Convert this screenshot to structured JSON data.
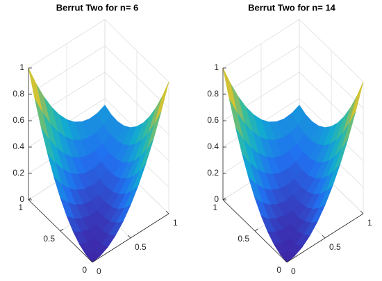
{
  "chart_data": [
    {
      "type": "surface",
      "title": "Berrut Two for n= 6",
      "x": [
        0,
        0.1,
        0.2,
        0.3,
        0.4,
        0.5,
        0.6,
        0.7,
        0.8,
        0.9,
        1
      ],
      "y": [
        0,
        0.1,
        0.2,
        0.3,
        0.4,
        0.5,
        0.6,
        0.7,
        0.8,
        0.9,
        1
      ],
      "z": [
        [
          0,
          0.01,
          0.04,
          0.09,
          0.16,
          0.25,
          0.36,
          0.49,
          0.64,
          0.81,
          1
        ],
        [
          0.01,
          0.004,
          0.017,
          0.051,
          0.104,
          0.178,
          0.271,
          0.385,
          0.518,
          0.672,
          0.845
        ],
        [
          0.04,
          0.017,
          0.014,
          0.031,
          0.068,
          0.125,
          0.202,
          0.299,
          0.416,
          0.553,
          0.71
        ],
        [
          0.09,
          0.051,
          0.031,
          0.032,
          0.052,
          0.093,
          0.153,
          0.234,
          0.334,
          0.455,
          0.595
        ],
        [
          0.16,
          0.104,
          0.068,
          0.052,
          0.056,
          0.08,
          0.124,
          0.188,
          0.272,
          0.376,
          0.5
        ],
        [
          0.25,
          0.178,
          0.125,
          0.093,
          0.08,
          0.088,
          0.115,
          0.163,
          0.23,
          0.318,
          0.425
        ],
        [
          0.36,
          0.271,
          0.202,
          0.153,
          0.124,
          0.115,
          0.126,
          0.157,
          0.208,
          0.279,
          0.37
        ],
        [
          0.49,
          0.385,
          0.299,
          0.234,
          0.188,
          0.163,
          0.157,
          0.172,
          0.206,
          0.261,
          0.335
        ],
        [
          0.64,
          0.518,
          0.416,
          0.334,
          0.272,
          0.23,
          0.208,
          0.206,
          0.224,
          0.262,
          0.32
        ],
        [
          0.81,
          0.672,
          0.553,
          0.455,
          0.376,
          0.318,
          0.279,
          0.261,
          0.262,
          0.284,
          0.325
        ],
        [
          1,
          0.845,
          0.71,
          0.595,
          0.5,
          0.425,
          0.37,
          0.335,
          0.32,
          0.325,
          0.35
        ]
      ],
      "xlim": [
        0,
        1
      ],
      "xticks": [
        0,
        0.5,
        1
      ],
      "ylim": [
        0,
        1
      ],
      "yticks": [
        0,
        0.5,
        1
      ],
      "zlim": [
        0,
        1
      ],
      "zticks": [
        0,
        0.2,
        0.4,
        0.6,
        0.8,
        1
      ],
      "grid": true,
      "colormap": "parula"
    },
    {
      "type": "surface",
      "title": "Berrut Two for n= 14",
      "x": [
        0,
        0.1,
        0.2,
        0.3,
        0.4,
        0.5,
        0.6,
        0.7,
        0.8,
        0.9,
        1
      ],
      "y": [
        0,
        0.1,
        0.2,
        0.3,
        0.4,
        0.5,
        0.6,
        0.7,
        0.8,
        0.9,
        1
      ],
      "z": [
        [
          0,
          0.01,
          0.04,
          0.09,
          0.16,
          0.25,
          0.36,
          0.49,
          0.64,
          0.81,
          1
        ],
        [
          0.01,
          0.004,
          0.017,
          0.051,
          0.104,
          0.178,
          0.271,
          0.385,
          0.518,
          0.672,
          0.845
        ],
        [
          0.04,
          0.017,
          0.014,
          0.031,
          0.068,
          0.125,
          0.202,
          0.299,
          0.416,
          0.553,
          0.71
        ],
        [
          0.09,
          0.051,
          0.031,
          0.032,
          0.052,
          0.093,
          0.153,
          0.234,
          0.334,
          0.455,
          0.595
        ],
        [
          0.16,
          0.104,
          0.068,
          0.052,
          0.056,
          0.08,
          0.124,
          0.188,
          0.272,
          0.376,
          0.5
        ],
        [
          0.25,
          0.178,
          0.125,
          0.093,
          0.08,
          0.088,
          0.115,
          0.163,
          0.23,
          0.318,
          0.425
        ],
        [
          0.36,
          0.271,
          0.202,
          0.153,
          0.124,
          0.115,
          0.126,
          0.157,
          0.208,
          0.279,
          0.37
        ],
        [
          0.49,
          0.385,
          0.299,
          0.234,
          0.188,
          0.163,
          0.157,
          0.172,
          0.206,
          0.261,
          0.335
        ],
        [
          0.64,
          0.518,
          0.416,
          0.334,
          0.272,
          0.23,
          0.208,
          0.206,
          0.224,
          0.262,
          0.32
        ],
        [
          0.81,
          0.672,
          0.553,
          0.455,
          0.376,
          0.318,
          0.279,
          0.261,
          0.262,
          0.284,
          0.325
        ],
        [
          1,
          0.845,
          0.71,
          0.595,
          0.5,
          0.425,
          0.37,
          0.335,
          0.32,
          0.325,
          0.35
        ]
      ],
      "xlim": [
        0,
        1
      ],
      "xticks": [
        0,
        0.5,
        1
      ],
      "ylim": [
        0,
        1
      ],
      "yticks": [
        0,
        0.5,
        1
      ],
      "zlim": [
        0,
        1
      ],
      "zticks": [
        0,
        0.2,
        0.4,
        0.6,
        0.8,
        1
      ],
      "grid": true,
      "colormap": "parula"
    }
  ]
}
